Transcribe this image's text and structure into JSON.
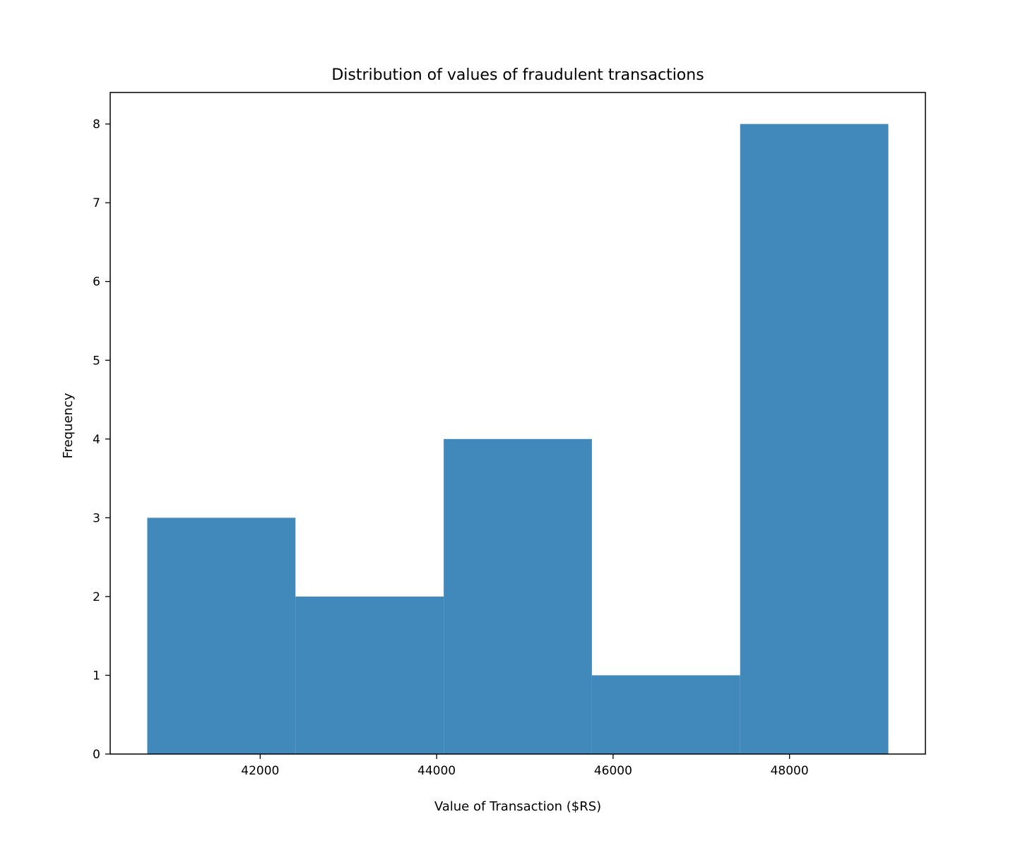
{
  "chart_data": {
    "type": "bar",
    "subtype": "histogram",
    "title": "Distribution of values of fraudulent transactions",
    "xlabel": "Value of Transaction ($RS)",
    "ylabel": "Frequency",
    "bins": [
      {
        "x0": 40720,
        "x1": 42400,
        "count": 3
      },
      {
        "x0": 42400,
        "x1": 44080,
        "count": 2
      },
      {
        "x0": 44080,
        "x1": 45760,
        "count": 4
      },
      {
        "x0": 45760,
        "x1": 47440,
        "count": 1
      },
      {
        "x0": 47440,
        "x1": 49120,
        "count": 8
      }
    ],
    "xlim": [
      40300,
      49540
    ],
    "ylim": [
      0,
      8.4
    ],
    "xticks": [
      "42000",
      "44000",
      "46000",
      "48000"
    ],
    "yticks": [
      "0",
      "1",
      "2",
      "3",
      "4",
      "5",
      "6",
      "7",
      "8"
    ],
    "bar_color": "#4289bb",
    "grid": false,
    "legend": "none"
  }
}
